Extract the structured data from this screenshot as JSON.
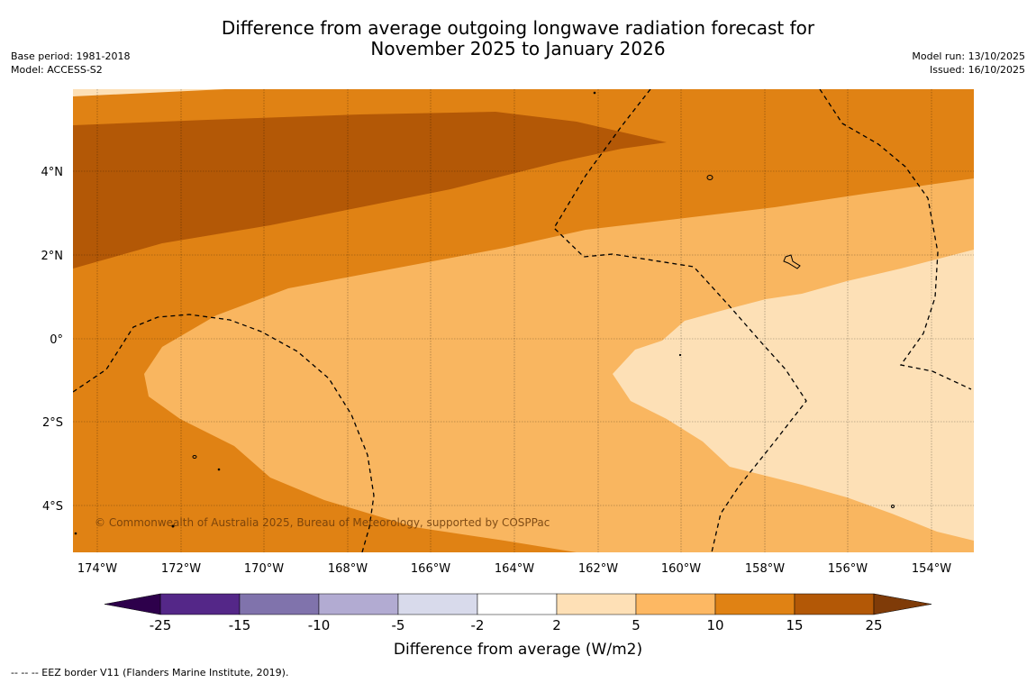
{
  "title": {
    "line1": "Difference from average outgoing longwave radiation forecast for",
    "line2": "November 2025 to January 2026"
  },
  "meta_left": {
    "base_period": "Base period: 1981-2018",
    "model": "Model: ACCESS-S2"
  },
  "meta_right": {
    "model_run": "Model run: 13/10/2025",
    "issued": "Issued: 16/10/2025"
  },
  "map": {
    "x_ticks": [
      "174°W",
      "172°W",
      "170°W",
      "168°W",
      "166°W",
      "164°W",
      "162°W",
      "160°W",
      "158°W",
      "156°W",
      "154°W"
    ],
    "y_ticks": [
      "4°N",
      "2°N",
      "0°",
      "2°S",
      "4°S"
    ],
    "copyright": "© Commonwealth of Australia 2025, Bureau of Meteorology, supported by COSPPac",
    "colors": {
      "c2_5": "#fde0b6",
      "c5_10": "#f9b660",
      "c10_15": "#e08214",
      "c15_25": "#b35806"
    }
  },
  "colorbar": {
    "ticks": [
      "-25",
      "-15",
      "-10",
      "-5",
      "-2",
      "2",
      "5",
      "10",
      "15",
      "25"
    ],
    "colors": [
      "#542788",
      "#8073ac",
      "#b2abd2",
      "#d8daeb",
      "#ffffff",
      "#fee0b6",
      "#fdb863",
      "#e08214",
      "#b35806"
    ],
    "under_color": "#2d004b",
    "over_color": "#7f3b08",
    "label": "Difference from average (W/m2)"
  },
  "footer": "--  --  -- EEZ border V11 (Flanders Marine Institute, 2019)."
}
